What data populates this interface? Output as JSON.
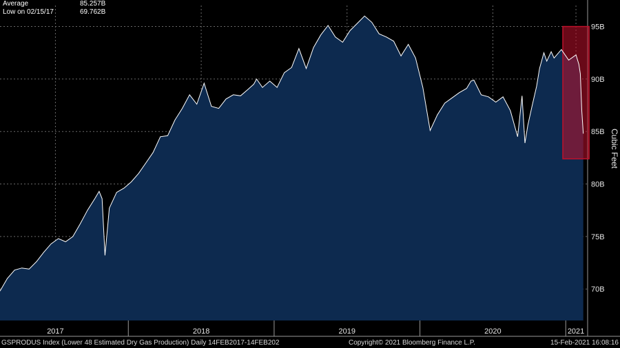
{
  "legend": {
    "average_label": "Average",
    "average_value": "85.257B",
    "low_label": "Low on 02/15/17",
    "low_value": "69.762B"
  },
  "footer": {
    "left": "GSPRODUS Index (Lower 48 Estimated Dry Gas Production)  Daily 14FEB2017-14FEB202",
    "center": "Copyright© 2021 Bloomberg Finance L.P.",
    "right": "15-Feb-2021 16:08:16"
  },
  "colors": {
    "background": "#000000",
    "fill": "#0d2a4f",
    "line": "#ffffff",
    "highlight": "#c0112b"
  },
  "chart_data": {
    "type": "area",
    "title": "",
    "ylabel": "Cubic Feet",
    "xlabel": "",
    "ylim": [
      67,
      97
    ],
    "yticks": [
      {
        "value": 70,
        "label": "70B"
      },
      {
        "value": 75,
        "label": "75B"
      },
      {
        "value": 80,
        "label": "80B"
      },
      {
        "value": 85,
        "label": "85B"
      },
      {
        "value": 90,
        "label": "90B"
      },
      {
        "value": 95,
        "label": "95B"
      }
    ],
    "xlim": [
      2017.12,
      2021.15
    ],
    "xticks": [
      {
        "value": 2017.5,
        "label": "2017"
      },
      {
        "value": 2018.5,
        "label": "2018"
      },
      {
        "value": 2019.5,
        "label": "2019"
      },
      {
        "value": 2020.5,
        "label": "2020"
      },
      {
        "value": 2021.07,
        "label": "2021"
      }
    ],
    "grid": true,
    "series": [
      {
        "x": [
          2017.12,
          2017.17,
          2017.22,
          2017.27,
          2017.32,
          2017.37,
          2017.42,
          2017.47,
          2017.52,
          2017.57,
          2017.62,
          2017.67,
          2017.72,
          2017.77,
          2017.8,
          2017.82,
          2017.84,
          2017.87,
          2017.92,
          2017.97,
          2018.02,
          2018.07,
          2018.12,
          2018.17,
          2018.22,
          2018.27,
          2018.32,
          2018.37,
          2018.42,
          2018.47,
          2018.52,
          2018.57,
          2018.62,
          2018.67,
          2018.72,
          2018.77,
          2018.82,
          2018.86,
          2018.88,
          2018.92,
          2018.97,
          2019.02,
          2019.07,
          2019.12,
          2019.17,
          2019.22,
          2019.27,
          2019.32,
          2019.37,
          2019.42,
          2019.47,
          2019.52,
          2019.57,
          2019.62,
          2019.67,
          2019.72,
          2019.77,
          2019.82,
          2019.87,
          2019.92,
          2019.97,
          2020.02,
          2020.07,
          2020.12,
          2020.17,
          2020.22,
          2020.27,
          2020.32,
          2020.35,
          2020.37,
          2020.42,
          2020.47,
          2020.52,
          2020.57,
          2020.62,
          2020.67,
          2020.7,
          2020.72,
          2020.74,
          2020.77,
          2020.8,
          2020.82,
          2020.85,
          2020.87,
          2020.9,
          2020.92,
          2020.97,
          2021.02,
          2021.07,
          2021.09,
          2021.1,
          2021.11,
          2021.12
        ],
        "y": [
          69.8,
          71.0,
          71.8,
          72.0,
          71.9,
          72.6,
          73.5,
          74.3,
          74.8,
          74.5,
          75.0,
          76.2,
          77.5,
          78.6,
          79.3,
          78.6,
          73.2,
          77.7,
          79.2,
          79.6,
          80.2,
          81.0,
          82.0,
          83.0,
          84.5,
          84.6,
          86.1,
          87.2,
          88.5,
          87.6,
          89.6,
          87.4,
          87.2,
          88.1,
          88.5,
          88.4,
          89.0,
          89.5,
          90.0,
          89.2,
          89.8,
          89.2,
          90.6,
          91.1,
          92.9,
          91.0,
          93.0,
          94.2,
          95.1,
          94.0,
          93.5,
          94.6,
          95.3,
          96.0,
          95.4,
          94.3,
          94.0,
          93.6,
          92.2,
          93.3,
          92.0,
          89.2,
          85.1,
          86.6,
          87.7,
          88.2,
          88.7,
          89.1,
          89.8,
          89.9,
          88.5,
          88.3,
          87.8,
          88.3,
          87.0,
          84.5,
          88.4,
          83.9,
          85.6,
          87.5,
          89.3,
          91.0,
          92.5,
          91.7,
          92.6,
          92.0,
          92.8,
          91.8,
          92.3,
          91.4,
          90.5,
          87.0,
          84.8
        ]
      }
    ],
    "highlight_region": {
      "x_start": 2020.98,
      "x_end": 2021.16,
      "y_start": 82.4,
      "y_end": 95.0
    }
  }
}
